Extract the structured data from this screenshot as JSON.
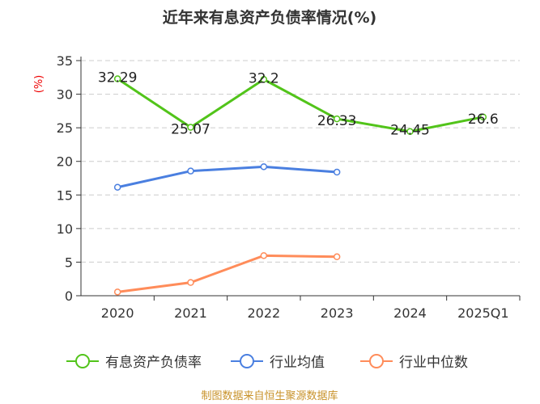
{
  "chart_data": {
    "type": "line",
    "title": "近年来有息资产负债率情况(%)",
    "ylabel": "(%)",
    "xlabel": "",
    "categories": [
      "2020",
      "2021",
      "2022",
      "2023",
      "2024",
      "2025Q1"
    ],
    "ylim": [
      0,
      35
    ],
    "yticks": [
      0,
      5,
      10,
      15,
      20,
      25,
      30,
      35
    ],
    "grid": true,
    "legend_position": "bottom",
    "series": [
      {
        "name": "有息资产负债率",
        "color": "#52c41a",
        "values": [
          32.29,
          25.07,
          32.2,
          26.33,
          24.45,
          26.6
        ],
        "labels": [
          "32.29",
          "25.07",
          "32.2",
          "26.33",
          "24.45",
          "26.6"
        ]
      },
      {
        "name": "行业均值",
        "color": "#4a7fe0",
        "values": [
          16.15,
          18.56,
          19.2,
          18.4,
          null,
          null
        ]
      },
      {
        "name": "行业中位数",
        "color": "#ff8c5a",
        "values": [
          0.56,
          1.97,
          5.97,
          5.8,
          null,
          null
        ]
      }
    ]
  },
  "source": "制图数据来自恒生聚源数据库"
}
